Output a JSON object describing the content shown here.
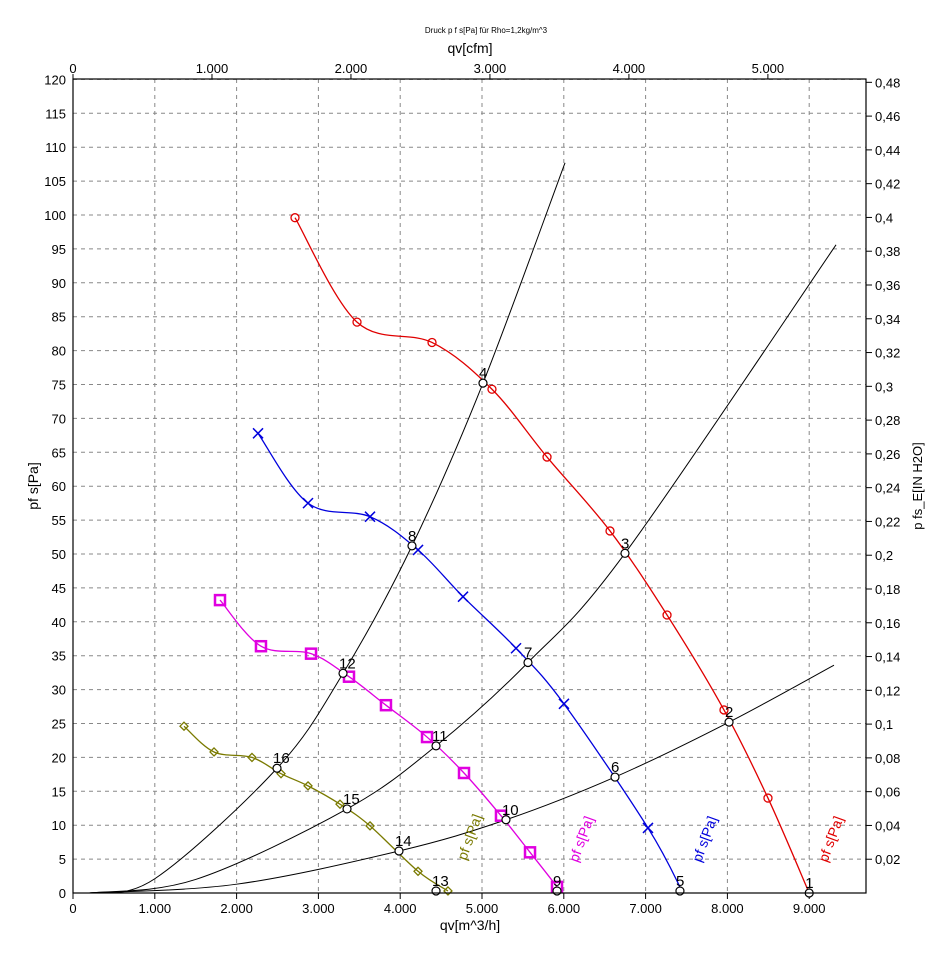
{
  "chart_data": {
    "type": "line",
    "title": "Druck p f s[Pa] für Rho=1,2kg/m^3",
    "xlabel": "qv[m^3/h]",
    "x2label": "qv[cfm]",
    "ylabel": "pf s[Pa]",
    "y2label": "p fs_E[IN H2O]",
    "xlim": [
      0,
      9700
    ],
    "ylim": [
      0,
      120
    ],
    "grid": true,
    "x_ticks": [
      "0",
      "1.000",
      "2.000",
      "3.000",
      "4.000",
      "5.000",
      "6.000",
      "7.000",
      "8.000",
      "9.000"
    ],
    "x_tick_values": [
      0,
      1000,
      2000,
      3000,
      4000,
      5000,
      6000,
      7000,
      8000,
      9000
    ],
    "x2_ticks": [
      "0",
      "1.000",
      "2.000",
      "3.000",
      "4.000",
      "5.000"
    ],
    "x2_tick_values": [
      0,
      1000,
      2000,
      3000,
      4000,
      5000
    ],
    "y_ticks": [
      "0",
      "5",
      "10",
      "15",
      "20",
      "25",
      "30",
      "35",
      "40",
      "45",
      "50",
      "55",
      "60",
      "65",
      "70",
      "75",
      "80",
      "85",
      "90",
      "95",
      "100",
      "105",
      "110",
      "115",
      "120"
    ],
    "y2_ticks": [
      "0,02",
      "0,04",
      "0,06",
      "0,08",
      "0,1",
      "0,12",
      "0,14",
      "0,16",
      "0,18",
      "0,2",
      "0,22",
      "0,24",
      "0,26",
      "0,28",
      "0,3",
      "0,32",
      "0,34",
      "0,36",
      "0,38",
      "0,4",
      "0,42",
      "0,44",
      "0,46",
      "0,48"
    ],
    "series": [
      {
        "name": "pf s[Pa]",
        "color": "#e00000",
        "marker": "circle",
        "x": [
          2714,
          3472,
          4389,
          5122,
          5795,
          6565,
          7262,
          7958,
          8496,
          9000
        ],
        "y": [
          99.6,
          84.2,
          81.2,
          74.3,
          64.3,
          53.4,
          41.0,
          27.0,
          14.0,
          0
        ]
      },
      {
        "name": "pf s[Pa]",
        "color": "#0000dd",
        "marker": "x",
        "x": [
          2262,
          2873,
          3631,
          4218,
          4768,
          5416,
          6002,
          7029,
          7457
        ],
        "y": [
          67.8,
          57.5,
          55.5,
          50.6,
          43.7,
          36.1,
          27.9,
          9.6,
          0
        ]
      },
      {
        "name": "pf s[Pa]",
        "color": "#e000e0",
        "marker": "square",
        "x": [
          1797,
          2298,
          2910,
          3374,
          3826,
          4328,
          4780,
          5232,
          5587,
          5917,
          5950
        ],
        "y": [
          43.2,
          36.4,
          35.3,
          31.9,
          27.7,
          23.0,
          17.7,
          11.4,
          6.0,
          0.9,
          0
        ]
      },
      {
        "name": "pf s[Pa]",
        "color": "#7a7a00",
        "marker": "diamond",
        "x": [
          1357,
          1724,
          2188,
          2543,
          2873,
          3264,
          3631,
          4218,
          4584
        ],
        "y": [
          24.6,
          20.8,
          20.0,
          17.6,
          15.8,
          13.1,
          9.9,
          3.2,
          0.3
        ]
      }
    ],
    "system_curves": [
      {
        "x": [
          200,
          1000,
          2494,
          3301,
          4144,
          5012,
          6015
        ],
        "y": [
          0,
          2.1,
          18.4,
          32.4,
          51.2,
          75.2,
          107.7
        ]
      },
      {
        "x": [
          200,
          1500,
          3350,
          4438,
          5562,
          6748,
          9328
        ],
        "y": [
          0,
          2.0,
          12.4,
          21.7,
          34.0,
          50.1,
          95.6
        ]
      },
      {
        "x": [
          200,
          2000,
          3985,
          5293,
          6626,
          8020,
          9303
        ],
        "y": [
          0,
          1.3,
          6.2,
          10.8,
          17.1,
          25.2,
          33.6
        ]
      }
    ],
    "operating_points": [
      {
        "label": "1",
        "x": 9000,
        "y": 0
      },
      {
        "label": "2",
        "x": 8020,
        "y": 25.2
      },
      {
        "label": "3",
        "x": 6748,
        "y": 50.1
      },
      {
        "label": "4",
        "x": 5012,
        "y": 75.2
      },
      {
        "label": "5",
        "x": 7420,
        "y": 0.3
      },
      {
        "label": "6",
        "x": 6626,
        "y": 17.1
      },
      {
        "label": "7",
        "x": 5562,
        "y": 34.0
      },
      {
        "label": "8",
        "x": 4144,
        "y": 51.2
      },
      {
        "label": "9",
        "x": 5917,
        "y": 0.3
      },
      {
        "label": "10",
        "x": 5293,
        "y": 10.8
      },
      {
        "label": "11",
        "x": 4438,
        "y": 21.7
      },
      {
        "label": "12",
        "x": 3301,
        "y": 32.4
      },
      {
        "label": "13",
        "x": 4438,
        "y": 0.3
      },
      {
        "label": "14",
        "x": 3985,
        "y": 6.2
      },
      {
        "label": "15",
        "x": 3350,
        "y": 12.4
      },
      {
        "label": "16",
        "x": 2494,
        "y": 18.4
      }
    ]
  }
}
